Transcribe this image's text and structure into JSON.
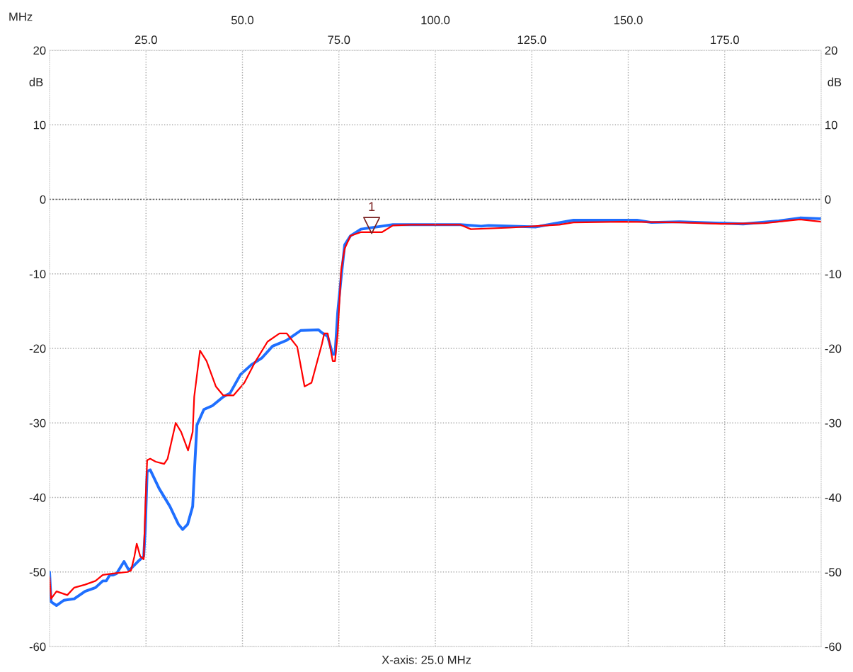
{
  "chart_data": {
    "type": "line",
    "xlabel": "MHz",
    "ylabel": "dB",
    "y2label": "dB",
    "xlim": [
      0,
      200
    ],
    "xticks": [
      {
        "value": 25,
        "label": "25.0"
      },
      {
        "value": 75,
        "label": "75.0"
      },
      {
        "value": 125,
        "label": "125.0"
      },
      {
        "value": 175,
        "label": "175.0"
      }
    ],
    "x2lim": [
      0,
      200
    ],
    "x2ticks": [
      {
        "value": 50,
        "label": "50.0"
      },
      {
        "value": 100,
        "label": "100.0"
      },
      {
        "value": 150,
        "label": "150.0"
      }
    ],
    "ylim": [
      -60,
      20
    ],
    "yticks": [
      -60,
      -50,
      -40,
      -30,
      -20,
      -10,
      0,
      10,
      20
    ],
    "y2lim": [
      -60,
      20
    ],
    "y2ticks": [
      -60,
      -50,
      -40,
      -30,
      -20,
      -10,
      0,
      10,
      20
    ],
    "grid": true,
    "ref_lines": [
      {
        "axis": "y",
        "value": 0,
        "color": "#404040",
        "line_style": "dotted"
      }
    ],
    "annotations": [
      {
        "text": "1",
        "x": 83.5,
        "y": -3.5
      },
      "X-axis: 25.0 MHz"
    ],
    "series": [
      {
        "color": "#1f6fff",
        "x": [
          0,
          0.4,
          1.8,
          3.7,
          6.4,
          9.2,
          11.9,
          13.8,
          14.7,
          15.6,
          16.5,
          17.4,
          19.3,
          20.6,
          22.9,
          24.4,
          24.8,
          25.3,
          26.1,
          28.4,
          31.2,
          33.4,
          34.5,
          35.8,
          37.1,
          37.6,
          38.2,
          40.0,
          42.2,
          45.0,
          46.8,
          49.5,
          52.3,
          55.0,
          57.8,
          61.5,
          65.1,
          69.7,
          70.6,
          72.1,
          73.4,
          74.0,
          74.7,
          75.6,
          76.5,
          78.0,
          80.7,
          86.2,
          89.0,
          106.4,
          111.9,
          113.8,
          126.1,
          135.8,
          152.3,
          156.0,
          163.3,
          179.8,
          189.0,
          194.5,
          200
        ],
        "values": [
          -50.0,
          -54.0,
          -54.5,
          -53.8,
          -53.6,
          -52.6,
          -52.1,
          -51.2,
          -51.2,
          -50.4,
          -50.4,
          -50.2,
          -48.6,
          -49.8,
          -48.6,
          -47.9,
          -44.5,
          -36.5,
          -36.3,
          -38.8,
          -41.2,
          -43.6,
          -44.3,
          -43.6,
          -41.2,
          -36.0,
          -30.3,
          -28.2,
          -27.7,
          -26.5,
          -26.0,
          -23.5,
          -22.2,
          -21.3,
          -19.7,
          -18.9,
          -17.6,
          -17.5,
          -17.9,
          -18.4,
          -20.8,
          -20.8,
          -15.1,
          -10.4,
          -6.1,
          -4.9,
          -4.0,
          -3.6,
          -3.4,
          -3.4,
          -3.6,
          -3.5,
          -3.7,
          -2.8,
          -2.8,
          -3.1,
          -3.0,
          -3.3,
          -2.9,
          -2.5,
          -2.6
        ]
      },
      {
        "color": "#ff0000",
        "x": [
          0,
          0.4,
          1.8,
          4.6,
          6.4,
          9.2,
          11.9,
          13.8,
          16.5,
          20.2,
          21.1,
          22.0,
          22.6,
          23.5,
          24.4,
          24.8,
          25.3,
          26.1,
          27.5,
          29.7,
          30.6,
          32.7,
          34.1,
          35.9,
          37.1,
          37.5,
          39.0,
          40.7,
          43.1,
          45.0,
          47.7,
          50.5,
          53.2,
          56.5,
          59.6,
          61.5,
          64.2,
          66.1,
          67.9,
          70.6,
          71.2,
          72.1,
          73.4,
          74.0,
          74.7,
          75.6,
          76.5,
          78.0,
          80.7,
          86.2,
          89.0,
          93.6,
          106.4,
          109.2,
          119.3,
          132.1,
          135.8,
          148.6,
          163.3,
          174.3,
          185.3,
          194.5,
          200
        ],
        "values": [
          -50.7,
          -53.6,
          -52.6,
          -53.1,
          -52.1,
          -51.7,
          -51.2,
          -50.4,
          -50.2,
          -50.0,
          -49.8,
          -47.9,
          -46.2,
          -47.9,
          -48.3,
          -41.7,
          -35.0,
          -34.8,
          -35.2,
          -35.5,
          -34.8,
          -30.0,
          -31.2,
          -33.7,
          -31.2,
          -26.5,
          -20.3,
          -21.7,
          -25.1,
          -26.3,
          -26.3,
          -24.6,
          -21.9,
          -19.1,
          -18.0,
          -18.0,
          -19.8,
          -25.1,
          -24.6,
          -19.4,
          -18.0,
          -18.0,
          -21.7,
          -21.7,
          -17.9,
          -9.4,
          -6.6,
          -4.9,
          -4.4,
          -4.4,
          -3.5,
          -3.4,
          -3.4,
          -4.0,
          -3.8,
          -3.4,
          -3.1,
          -3.0,
          -3.1,
          -3.3,
          -3.2,
          -2.7,
          -3.0
        ]
      }
    ]
  }
}
